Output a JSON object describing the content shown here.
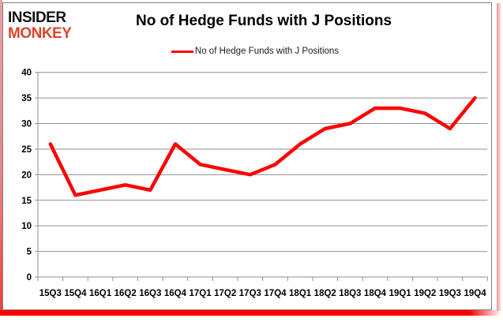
{
  "logo": {
    "top": "INSIDER",
    "bottom": "MONKEY"
  },
  "header": {
    "title": "No of Hedge Funds with J Positions"
  },
  "legend": {
    "label": "No of Hedge Funds with J Positions"
  },
  "colors": {
    "series": "#fe0000",
    "logo_red": "#dc442b",
    "grid": "#8f8f8f",
    "axis": "#8f8f8f",
    "frame_border": "#7f7f7f",
    "text": "#000000",
    "accent_red": "#fe0000",
    "shadow_pink": "#ee7d7d"
  },
  "chart_data": {
    "type": "line",
    "title": "No of Hedge Funds with J Positions",
    "categories": [
      "15Q3",
      "15Q4",
      "16Q1",
      "16Q2",
      "16Q3",
      "16Q4",
      "17Q1",
      "17Q2",
      "17Q3",
      "17Q4",
      "18Q1",
      "18Q2",
      "18Q3",
      "18Q4",
      "19Q1",
      "19Q2",
      "19Q3",
      "19Q4"
    ],
    "series": [
      {
        "name": "No of Hedge Funds with J Positions",
        "color": "#fe0000",
        "values": [
          26,
          16,
          17,
          18,
          17,
          26,
          22,
          21,
          20,
          22,
          26,
          29,
          30,
          33,
          33,
          32,
          29,
          35
        ]
      }
    ],
    "xlabel": "",
    "ylabel": "",
    "ylim": [
      0,
      40
    ],
    "yticks": [
      0,
      5,
      10,
      15,
      20,
      25,
      30,
      35,
      40
    ],
    "grid": "horizontal-only",
    "legend_position": "top-center"
  }
}
